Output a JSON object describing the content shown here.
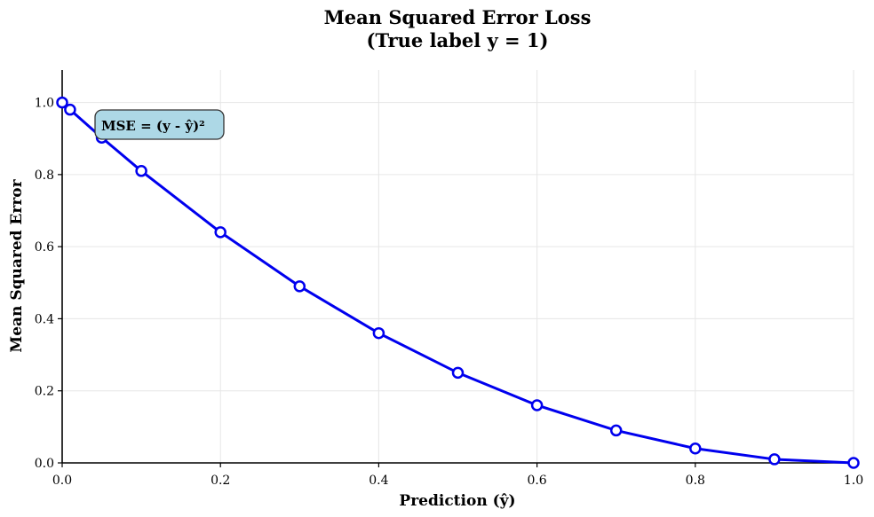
{
  "chart_data": {
    "type": "line",
    "title_line1": "Mean Squared Error Loss",
    "title_line2": "(True label y = 1)",
    "xlabel": "Prediction (ŷ)",
    "ylabel": "Mean Squared Error",
    "xlim": [
      0,
      1
    ],
    "ylim": [
      0,
      1.09
    ],
    "xticks": [
      0,
      0.2,
      0.4,
      0.6,
      0.8,
      1.0
    ],
    "xtick_labels": [
      "0.0",
      "0.2",
      "0.4",
      "0.6",
      "0.8",
      "1.0"
    ],
    "yticks": [
      0,
      0.2,
      0.4,
      0.6,
      0.8,
      1.0
    ],
    "ytick_labels": [
      "0.0",
      "0.2",
      "0.4",
      "0.6",
      "0.8",
      "1.0"
    ],
    "grid": true,
    "series": [
      {
        "color": "#0000ee",
        "x": [
          0.0,
          0.01,
          0.05,
          0.1,
          0.2,
          0.3,
          0.4,
          0.5,
          0.6,
          0.7,
          0.8,
          0.9,
          1.0
        ],
        "y": [
          1.0,
          0.9801,
          0.9025,
          0.81,
          0.64,
          0.49,
          0.36,
          0.25,
          0.16,
          0.09,
          0.04,
          0.01,
          0.0
        ]
      }
    ],
    "annotation": {
      "text": "MSE = (y - ŷ)²",
      "position": "top-left",
      "background": "#add8e6"
    }
  }
}
